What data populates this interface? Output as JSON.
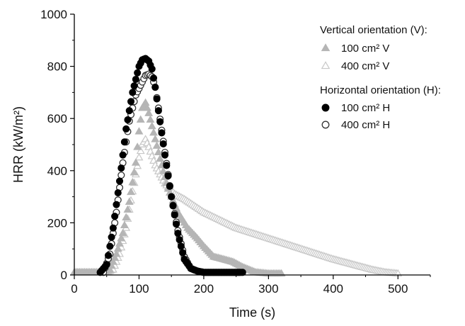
{
  "chart_data": {
    "type": "scatter",
    "title": "",
    "xlabel": "Time (s)",
    "ylabel": "HRR (kW/m²)",
    "xlim": [
      0,
      550
    ],
    "ylim": [
      0,
      1000
    ],
    "xticks": [
      "0",
      "100",
      "200",
      "300",
      "400",
      "500"
    ],
    "yticks": [
      "0",
      "200",
      "400",
      "600",
      "800",
      "1000"
    ],
    "grid": false,
    "legend_position": "top-right",
    "legend_groups": [
      {
        "heading": "Vertical orientation (V):",
        "series": [
          "100 cm² V",
          "400 cm² V"
        ]
      },
      {
        "heading": "Horizontal orientation (H):",
        "series": [
          "100 cm² H",
          "400 cm² H"
        ]
      }
    ],
    "series": [
      {
        "name": "100 cm² V",
        "marker": "triangle-filled",
        "color": "#b5b5b5",
        "x": [
          0,
          45,
          55,
          65,
          75,
          85,
          95,
          100,
          105,
          110,
          115,
          125,
          135,
          145,
          160,
          175,
          190,
          200,
          215,
          230,
          245,
          260,
          280,
          300,
          320
        ],
        "y": [
          10,
          10,
          20,
          80,
          160,
          280,
          430,
          550,
          640,
          660,
          620,
          520,
          420,
          330,
          240,
          180,
          140,
          110,
          70,
          60,
          50,
          30,
          10,
          5,
          5
        ]
      },
      {
        "name": "400 cm² V",
        "marker": "triangle-open",
        "color": "#c8c8c8",
        "x": [
          0,
          50,
          60,
          70,
          80,
          90,
          100,
          105,
          110,
          115,
          125,
          140,
          155,
          170,
          200,
          250,
          300,
          350,
          400,
          430,
          460,
          480,
          500
        ],
        "y": [
          10,
          10,
          20,
          80,
          180,
          320,
          450,
          500,
          520,
          490,
          420,
          350,
          310,
          290,
          240,
          180,
          140,
          100,
          60,
          40,
          20,
          10,
          5
        ]
      },
      {
        "name": "100 cm² H",
        "marker": "circle-filled",
        "color": "#000000",
        "x": [
          40,
          50,
          60,
          70,
          80,
          90,
          100,
          105,
          110,
          115,
          120,
          125,
          130,
          140,
          150,
          160,
          170,
          180,
          190,
          200,
          220,
          240,
          260
        ],
        "y": [
          10,
          40,
          180,
          360,
          560,
          700,
          800,
          825,
          830,
          820,
          790,
          720,
          630,
          460,
          300,
          160,
          60,
          25,
          15,
          10,
          10,
          10,
          10
        ]
      },
      {
        "name": "400 cm² H",
        "marker": "circle-open",
        "color": "#333333",
        "x": [
          45,
          55,
          65,
          75,
          85,
          95,
          105,
          110,
          115,
          120,
          125,
          130,
          140,
          150,
          160,
          170,
          180,
          190,
          200,
          220,
          240,
          255
        ],
        "y": [
          10,
          80,
          240,
          430,
          590,
          690,
          740,
          765,
          770,
          760,
          720,
          640,
          470,
          300,
          170,
          70,
          25,
          15,
          10,
          10,
          10,
          10
        ]
      }
    ]
  }
}
